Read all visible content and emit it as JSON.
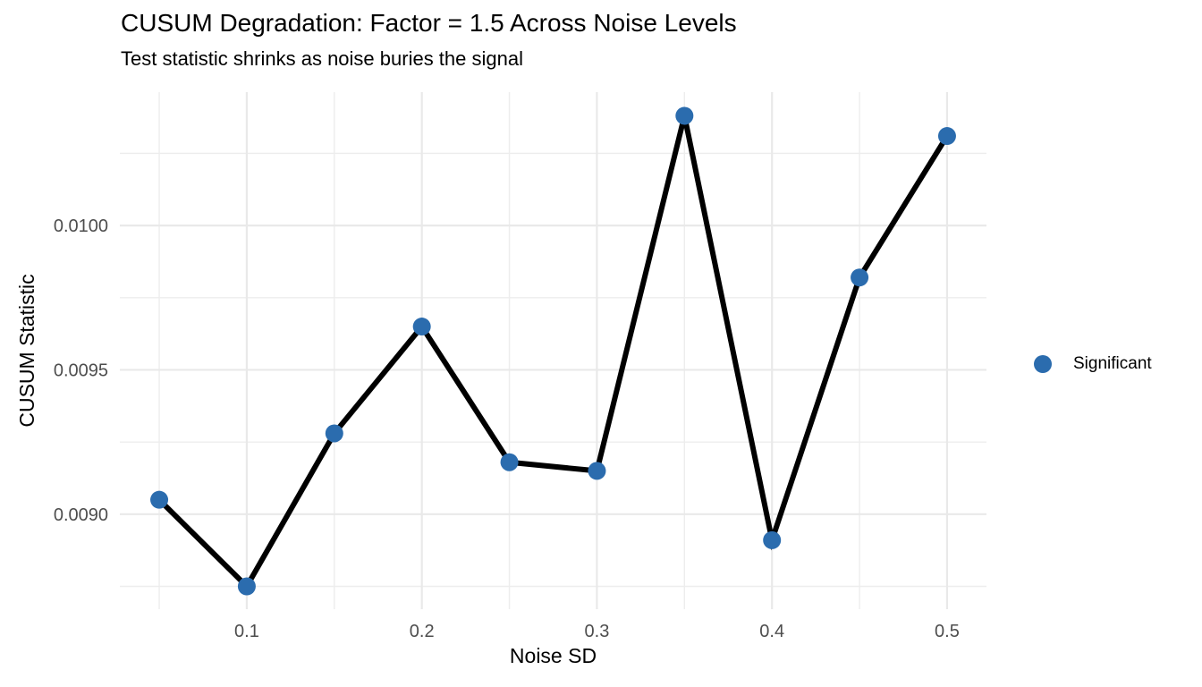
{
  "chart_data": {
    "type": "line",
    "title": "CUSUM Degradation: Factor = 1.5 Across Noise Levels",
    "subtitle": "Test statistic shrinks as noise buries the signal",
    "xlabel": "Noise SD",
    "ylabel": "CUSUM Statistic",
    "series": [
      {
        "name": "Significant",
        "x": [
          0.05,
          0.1,
          0.15,
          0.2,
          0.25,
          0.3,
          0.35,
          0.4,
          0.45,
          0.5
        ],
        "y": [
          0.00905,
          0.00875,
          0.00928,
          0.00965,
          0.00918,
          0.00915,
          0.01038,
          0.00891,
          0.00982,
          0.01031
        ]
      }
    ],
    "legend": {
      "position": "right",
      "entries": [
        {
          "label": "Significant",
          "marker": "circle",
          "color": "#2b6cae"
        }
      ]
    },
    "xlim": [
      0.0275,
      0.5225
    ],
    "ylim": [
      0.008671,
      0.010462
    ],
    "x_major_ticks": [
      0.1,
      0.2,
      0.3,
      0.4,
      0.5
    ],
    "x_tick_labels": [
      "0.1",
      "0.2",
      "0.3",
      "0.4",
      "0.5"
    ],
    "x_minor_ticks": [
      0.05,
      0.15,
      0.25,
      0.35,
      0.45
    ],
    "y_major_ticks": [
      0.009,
      0.0095,
      0.01
    ],
    "y_tick_labels": [
      "0.0090",
      "0.0095",
      "0.0100"
    ],
    "y_minor_ticks": [
      0.00875,
      0.00925,
      0.00975,
      0.01025
    ],
    "grid": true,
    "styles": {
      "background": "#ffffff",
      "grid_major_color": "#e9e9e9",
      "grid_minor_color": "#ededed",
      "line_color": "#000000",
      "line_width": 6,
      "point_color": "#2b6cae",
      "point_radius": 10,
      "tick_label_color": "#4d4d4d",
      "text_color": "#000000"
    }
  }
}
